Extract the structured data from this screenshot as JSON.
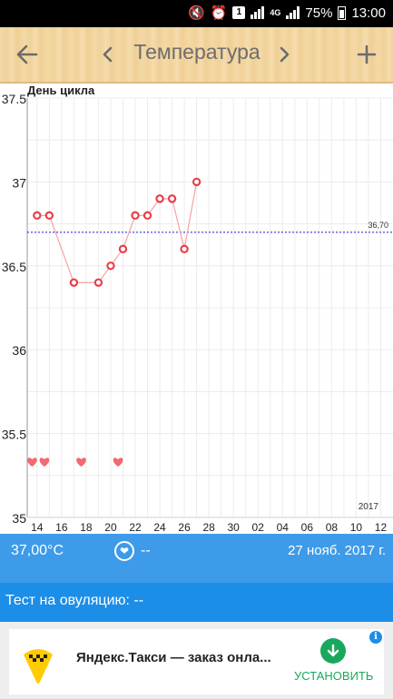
{
  "status_bar": {
    "network": "4G",
    "battery": "75%",
    "time": "13:00",
    "icons": [
      "mute-icon",
      "alarm-icon",
      "notification-icon",
      "sim-signal-icon",
      "signal-icon",
      "battery-icon"
    ]
  },
  "toolbar": {
    "title": "Температура",
    "back_icon": "arrow-left-icon",
    "prev_icon": "chevron-left-icon",
    "next_icon": "chevron-right-icon",
    "add_label": "+"
  },
  "chart": {
    "y_axis_label": "День цикла",
    "reference_label": "36,70",
    "year_label": "2017",
    "colors": {
      "line": "#f5a3a3",
      "marker": "#e8404a",
      "heart": "#f26a72",
      "reference": "#1a1ad6",
      "grid": "#ececec"
    }
  },
  "chart_data": {
    "type": "line",
    "xlabel": "",
    "ylabel": "День цикла",
    "ylim": [
      35,
      37.5
    ],
    "y_ticks": [
      "35",
      "35.5",
      "36",
      "36.5",
      "37",
      "37.5"
    ],
    "x_ticks": [
      "14",
      "16",
      "18",
      "20",
      "22",
      "24",
      "26",
      "28",
      "30",
      "02",
      "04",
      "06",
      "08",
      "10",
      "12"
    ],
    "x_domain": [
      13.2,
      43
    ],
    "series": [
      {
        "x": [
          14,
          15,
          16,
          17,
          18,
          19,
          20,
          21,
          22,
          23,
          24,
          25
        ],
        "y": [
          36.8,
          36.8,
          36.4,
          36.4,
          36.5,
          36.6,
          36.8,
          36.8,
          36.9,
          36.9,
          36.6,
          37.0
        ]
      }
    ],
    "point_x": [
      14,
      15,
      17,
      19,
      20,
      21,
      22,
      23,
      24,
      25,
      26,
      27
    ],
    "reference_line": 36.7,
    "heart_days": [
      13,
      14,
      17,
      20
    ]
  },
  "info_bar": {
    "temperature": "37,00°C",
    "heart_icon": "heart-circle-icon",
    "heart_value": "--",
    "date": "27 нояб. 2017 г."
  },
  "ovulation": {
    "label": "Тест на овуляцию: --"
  },
  "ad": {
    "title": "Яндекс.Такси — заказ онла...",
    "install_label": "УСТАНОВИТЬ",
    "logo_icon": "taxi-logo-icon",
    "info_icon": "info-icon"
  }
}
